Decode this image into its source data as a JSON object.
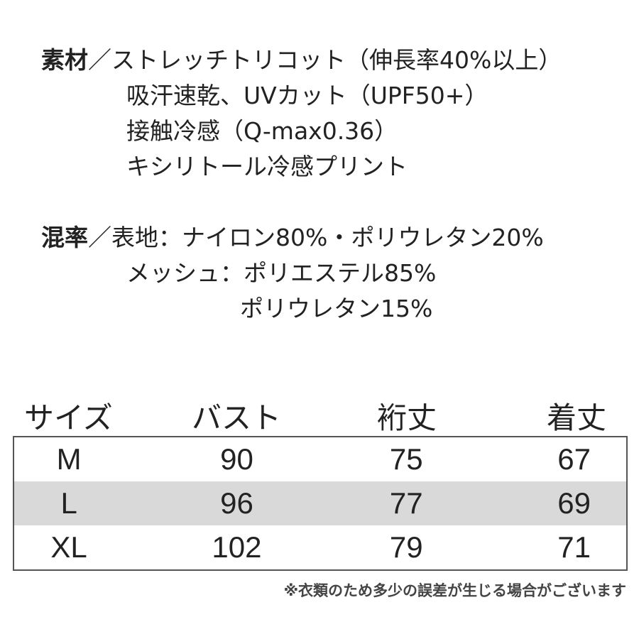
{
  "material": {
    "label": "素材",
    "separator": "／",
    "lines": [
      "ストレッチトリコット（伸長率40%以上）",
      "吸汗速乾、UVカット（UPF50+）",
      "接触冷感（Q-max0.36）",
      "キシリトール冷感プリント"
    ]
  },
  "blend": {
    "label": "混率",
    "separator": "／",
    "lines": [
      "表地：ナイロン80%・ポリウレタン20%",
      "メッシュ：ポリエステル85%",
      "ポリウレタン15%"
    ]
  },
  "size_table": {
    "headers": [
      "サイズ",
      "バスト",
      "裄丈",
      "着丈"
    ],
    "rows": [
      [
        "M",
        "90",
        "75",
        "67"
      ],
      [
        "L",
        "96",
        "77",
        "69"
      ],
      [
        "XL",
        "102",
        "79",
        "71"
      ]
    ]
  },
  "note": "※衣類のため多少の誤差が生じる場合がございます",
  "colors": {
    "text": "#222222",
    "alt_row": "#d9d9d9",
    "border": "#555555"
  }
}
